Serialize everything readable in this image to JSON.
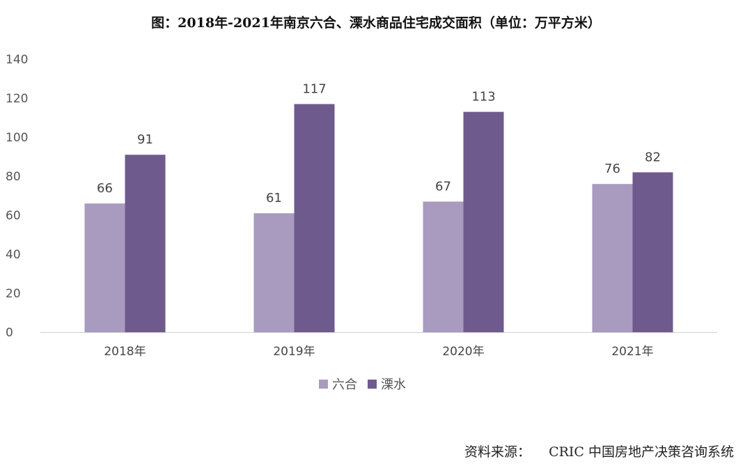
{
  "chart_data": {
    "type": "bar",
    "title": "图：2018年-2021年南京六合、溧水商品住宅成交面积（单位：万平方米）",
    "categories": [
      "2018年",
      "2019年",
      "2020年",
      "2021年"
    ],
    "series": [
      {
        "name": "六合",
        "values": [
          66,
          61,
          67,
          76
        ],
        "color": "#a89bbf"
      },
      {
        "name": "溧水",
        "values": [
          91,
          117,
          113,
          82
        ],
        "color": "#6f5a8d"
      }
    ],
    "ylim": [
      0,
      140
    ],
    "yticks": [
      0,
      20,
      40,
      60,
      80,
      100,
      120,
      140
    ],
    "grid": false,
    "legend": "bottom"
  },
  "source": {
    "label": "资料来源：",
    "text": "CRIC 中国房地产决策咨询系统"
  }
}
